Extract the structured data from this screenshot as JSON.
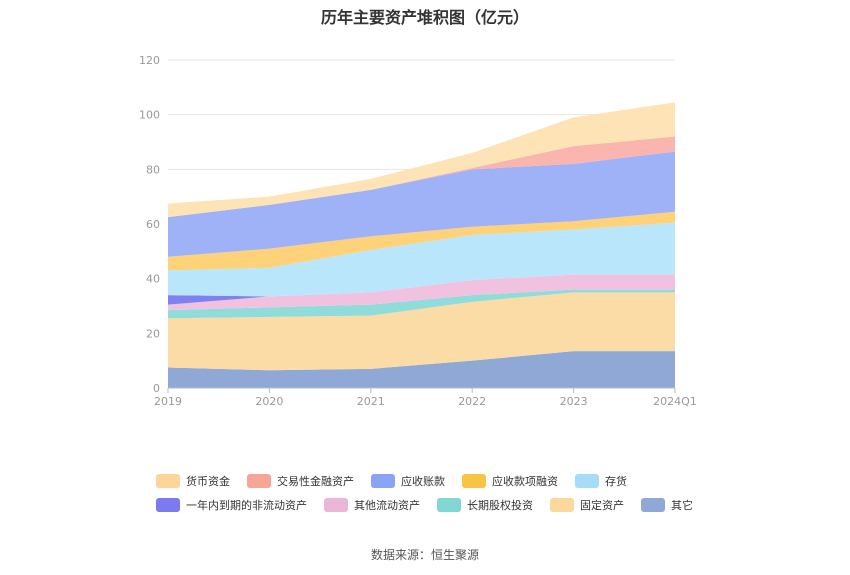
{
  "title": "历年主要资产堆积图（亿元）",
  "source": "数据来源：恒生聚源",
  "chart_data": {
    "type": "area",
    "stacked": true,
    "categories": [
      "2019",
      "2020",
      "2021",
      "2022",
      "2023",
      "2024Q1"
    ],
    "ylim": [
      0,
      120
    ],
    "yticks": [
      0,
      20,
      40,
      60,
      80,
      100,
      120
    ],
    "grid": true,
    "legend_position": "bottom",
    "series": [
      {
        "name": "其它",
        "color": "#8fa8d6",
        "values": [
          7.5,
          6.5,
          7.0,
          10.0,
          13.5,
          13.5
        ]
      },
      {
        "name": "固定资产",
        "color": "#fbdca6",
        "values": [
          18.0,
          19.5,
          19.5,
          21.5,
          21.5,
          21.5
        ]
      },
      {
        "name": "长期股权投资",
        "color": "#8fdcdb",
        "values": [
          3.0,
          3.5,
          4.0,
          2.5,
          1.0,
          1.0
        ]
      },
      {
        "name": "其他流动资产",
        "color": "#f1c2e0",
        "values": [
          2.0,
          4.0,
          4.5,
          5.5,
          5.5,
          5.5
        ]
      },
      {
        "name": "一年内到期的非流动资产",
        "color": "#8080f0",
        "values": [
          3.5,
          0,
          0,
          0,
          0,
          0
        ]
      },
      {
        "name": "存货",
        "color": "#b9e6fb",
        "values": [
          9.0,
          10.5,
          15.5,
          16.5,
          16.5,
          19.0
        ]
      },
      {
        "name": "应收款项融资",
        "color": "#fdd279",
        "values": [
          5.0,
          7.0,
          5.0,
          3.0,
          3.0,
          4.0
        ]
      },
      {
        "name": "应收账款",
        "color": "#9fb2f8",
        "values": [
          14.5,
          16.0,
          17.0,
          21.0,
          21.0,
          22.0
        ]
      },
      {
        "name": "交易性金融资产",
        "color": "#f9b5ae",
        "values": [
          0,
          0,
          0,
          0.5,
          6.5,
          5.5
        ]
      },
      {
        "name": "货币资金",
        "color": "#fde3b5",
        "values": [
          5.0,
          3.0,
          4.0,
          5.5,
          10.5,
          12.5
        ]
      }
    ],
    "legend_order": [
      "货币资金",
      "交易性金融资产",
      "应收账款",
      "应收款项融资",
      "存货",
      "一年内到期的非流动资产",
      "其他流动资产",
      "长期股权投资",
      "固定资产",
      "其它"
    ],
    "legend_colors": {
      "货币资金": "#fcd59a",
      "交易性金融资产": "#f6a597",
      "应收账款": "#8aa3f5",
      "应收款项融资": "#f9c443",
      "存货": "#a7dcf8",
      "一年内到期的非流动资产": "#7b7bee",
      "其他流动资产": "#eab7d8",
      "长期股权投资": "#82d6d4",
      "固定资产": "#fbd89b",
      "其它": "#8fa8d6"
    }
  }
}
